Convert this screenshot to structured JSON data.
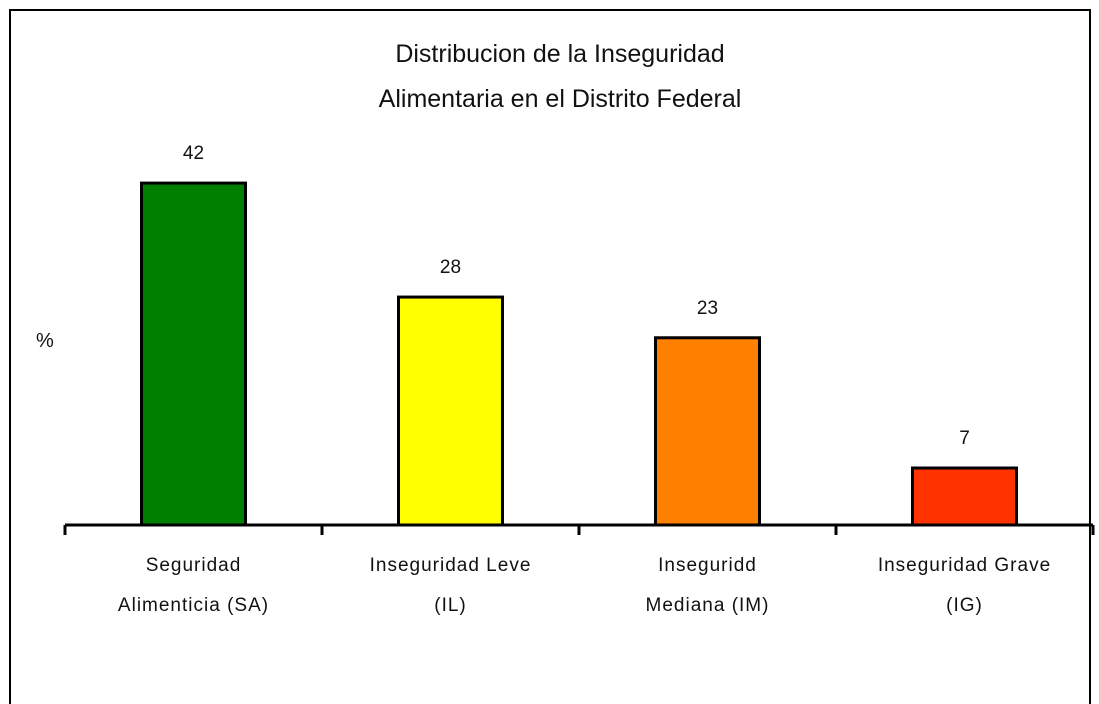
{
  "chart_data": {
    "type": "bar",
    "title": "Distribucion de la Inseguridad\nAlimentaria en el Distrito Federal",
    "ylabel": "%",
    "categories": [
      "Seguridad\nAlimenticia (SA)",
      "Inseguridad Leve\n(IL)",
      "Inseguridd\nMediana (IM)",
      "Inseguridad Grave\n(IG)"
    ],
    "values": [
      42,
      28,
      23,
      7
    ],
    "colors": [
      "#008000",
      "#ffff00",
      "#ff8000",
      "#ff3300"
    ],
    "ylim": [
      0,
      64
    ]
  }
}
